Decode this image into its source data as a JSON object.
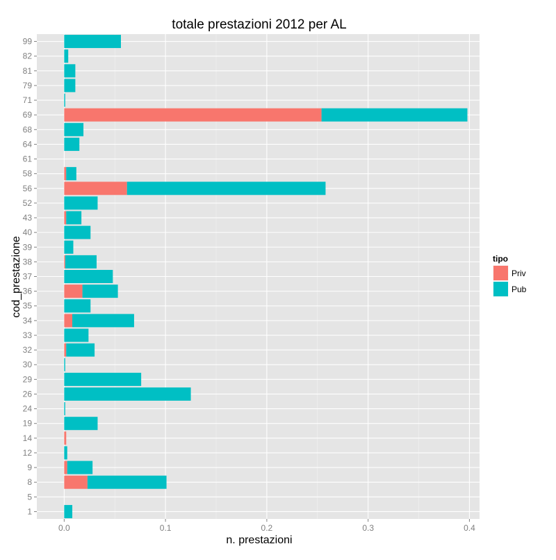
{
  "chart_data": {
    "type": "bar",
    "orientation": "horizontal",
    "stacked": true,
    "title": "totale prestazioni 2012 per AL",
    "xlabel": "n. prestazioni",
    "ylabel": "cod_prestazione",
    "xlim": [
      -0.027,
      0.41
    ],
    "xticks": [
      0.0,
      0.1,
      0.2,
      0.3,
      0.4
    ],
    "xtick_labels": [
      "0.0",
      "0.1",
      "0.2",
      "0.3",
      "0.4"
    ],
    "categories": [
      "1",
      "5",
      "8",
      "9",
      "12",
      "14",
      "19",
      "24",
      "26",
      "29",
      "30",
      "32",
      "33",
      "34",
      "35",
      "36",
      "37",
      "38",
      "39",
      "40",
      "43",
      "52",
      "56",
      "58",
      "61",
      "64",
      "68",
      "69",
      "71",
      "79",
      "81",
      "82",
      "99"
    ],
    "series": [
      {
        "name": "Priv",
        "color": "#F8766D",
        "values": [
          0,
          0,
          0.023,
          0.003,
          0,
          0.002,
          0,
          0,
          0,
          0,
          0,
          0.002,
          0,
          0.008,
          0,
          0.018,
          0,
          0.001,
          0,
          0,
          0.002,
          0,
          0.062,
          0.002,
          0,
          0,
          0,
          0.254,
          0,
          0,
          0,
          0,
          0
        ]
      },
      {
        "name": "Pub",
        "color": "#00BFC4",
        "values": [
          0.008,
          0,
          0.078,
          0.025,
          0.003,
          0,
          0.033,
          0.001,
          0.125,
          0.076,
          0.001,
          0.028,
          0.024,
          0.061,
          0.026,
          0.035,
          0.048,
          0.031,
          0.009,
          0.026,
          0.015,
          0.033,
          0.196,
          0.01,
          0,
          0.015,
          0.019,
          0.144,
          0.001,
          0.011,
          0.011,
          0.004,
          0.056
        ]
      }
    ],
    "legend": {
      "title": "tipo",
      "position": "right",
      "items": [
        "Priv",
        "Pub"
      ]
    },
    "grid": true,
    "colors": {
      "panel_background": "#E5E5E5",
      "grid_major": "#FFFFFF",
      "grid_minor": "#F2F2F2",
      "tick_text": "#7F7F7F"
    }
  }
}
